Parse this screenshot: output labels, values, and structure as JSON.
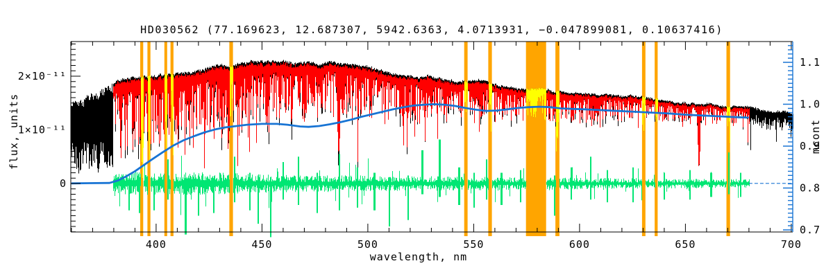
{
  "window": {
    "background": "#ffffff"
  },
  "chart_data": {
    "type": "line",
    "subtype": "stellar-spectrum-fit",
    "title": "HD030562  (77.169623, 12.687307, 5942.6363, 4.0713931, −0.047899081, 0.10637416)",
    "star_id": "HD030562",
    "header_values": [
      "77.169623",
      "12.687307",
      "5942.6363",
      "4.0713931",
      "−0.047899081",
      "0.10637416"
    ],
    "xlabel": "wavelength, nm",
    "ylabel_left": "flux, units",
    "ylabel_right": "mcont",
    "grid": false,
    "legend": "none",
    "axes": {
      "x": {
        "range": [
          359.7,
          700.7
        ],
        "major_ticks": [
          400,
          450,
          500,
          550,
          600,
          650,
          700
        ],
        "major_labels": [
          "400",
          "450",
          "500",
          "550",
          "600",
          "650",
          "700"
        ],
        "minor_step": 10
      },
      "y_left": {
        "units": "1e-11",
        "range_e11": [
          -0.903,
          2.645
        ],
        "major_ticks_e11": [
          0,
          1,
          2
        ],
        "major_labels": [
          "0",
          "1×10⁻¹¹",
          "2×10⁻¹¹"
        ],
        "minor_step_e11": 0.1
      },
      "y_right": {
        "range": [
          0.695,
          1.1496
        ],
        "major_ticks": [
          0.7,
          0.8,
          0.9,
          1.0,
          1.1
        ],
        "major_labels": [
          "0.7",
          "0.8",
          "0.9",
          "1.0",
          "1.1"
        ],
        "minor_step": 0.01
      }
    },
    "colors": {
      "observed": "#000000",
      "model": "#ff0000",
      "masked_points": "#ffff00",
      "masked_bands": "#ffa500",
      "residuals": "#00e673",
      "mcont": "#1874d4",
      "frame": "#000000",
      "right_axis": "#1874d4"
    },
    "series": {
      "observed": {
        "name": "observed spectrum",
        "x_range_nm": [
          360,
          700.6
        ],
        "envelope_top_e11": [
          [
            360,
            1.52
          ],
          [
            365,
            1.6
          ],
          [
            372,
            1.76
          ],
          [
            378,
            1.92
          ],
          [
            382,
            2.0
          ],
          [
            390,
            2.05
          ],
          [
            400,
            2.1
          ],
          [
            415,
            2.17
          ],
          [
            430,
            2.25
          ],
          [
            450,
            2.3
          ],
          [
            470,
            2.28
          ],
          [
            485,
            2.22
          ],
          [
            500,
            2.15
          ],
          [
            520,
            2.05
          ],
          [
            540,
            1.97
          ],
          [
            560,
            1.9
          ],
          [
            580,
            1.83
          ],
          [
            600,
            1.76
          ],
          [
            620,
            1.68
          ],
          [
            640,
            1.6
          ],
          [
            656,
            1.55
          ],
          [
            670,
            1.5
          ],
          [
            680,
            1.46
          ],
          [
            690,
            1.4
          ],
          [
            700,
            1.35
          ]
        ],
        "left_noisy_band_bottom_e11": 0.35
      },
      "model": {
        "name": "fitted model spectrum",
        "x_range_nm": [
          380,
          680.3
        ],
        "line_depth_fraction": [
          [
            380,
            0.62
          ],
          [
            400,
            0.62
          ],
          [
            420,
            0.58
          ],
          [
            440,
            0.55
          ],
          [
            465,
            0.45
          ],
          [
            490,
            0.42
          ],
          [
            515,
            0.4
          ],
          [
            540,
            0.36
          ],
          [
            565,
            0.34
          ],
          [
            590,
            0.32
          ],
          [
            615,
            0.28
          ],
          [
            640,
            0.26
          ],
          [
            665,
            0.24
          ],
          [
            680,
            0.24
          ]
        ]
      },
      "absorption_lines_nm_minflux_e11_halfwidth": [
        [
          383.0,
          0.5,
          0.6
        ],
        [
          385.2,
          0.55,
          0.5
        ],
        [
          388.9,
          0.4,
          0.7
        ],
        [
          393.4,
          0.1,
          0.9
        ],
        [
          396.8,
          0.16,
          0.8
        ],
        [
          400.9,
          0.6,
          0.4
        ],
        [
          404.6,
          0.45,
          0.5
        ],
        [
          407.8,
          0.5,
          0.45
        ],
        [
          410.2,
          0.45,
          0.8
        ],
        [
          413.5,
          0.6,
          0.4
        ],
        [
          417.5,
          0.62,
          0.4
        ],
        [
          422.7,
          0.45,
          0.5
        ],
        [
          427.1,
          0.55,
          0.45
        ],
        [
          430.8,
          0.55,
          0.6
        ],
        [
          434.0,
          0.45,
          0.9
        ],
        [
          438.4,
          0.55,
          0.5
        ],
        [
          440.5,
          0.62,
          0.4
        ],
        [
          444.0,
          0.7,
          0.4
        ],
        [
          447.2,
          0.72,
          0.4
        ],
        [
          453.1,
          0.8,
          0.4
        ],
        [
          458.2,
          0.88,
          0.4
        ],
        [
          464.0,
          0.95,
          0.4
        ],
        [
          470.0,
          1.02,
          0.4
        ],
        [
          476.0,
          1.05,
          0.4
        ],
        [
          486.1,
          0.43,
          1.2
        ],
        [
          492.5,
          1.05,
          0.4
        ],
        [
          495.1,
          0.35,
          0.4
        ],
        [
          501.2,
          1.05,
          0.4
        ],
        [
          508.0,
          1.1,
          0.4
        ],
        [
          516.7,
          0.58,
          0.6
        ],
        [
          518.4,
          0.62,
          0.5
        ],
        [
          522.0,
          1.0,
          0.4
        ],
        [
          527.0,
          0.8,
          0.5
        ],
        [
          532.8,
          0.95,
          0.4
        ],
        [
          537.0,
          1.1,
          0.35
        ],
        [
          544.0,
          1.1,
          0.35
        ],
        [
          552.5,
          1.05,
          0.4
        ],
        [
          558.0,
          1.0,
          0.4
        ],
        [
          563.5,
          1.1,
          0.35
        ],
        [
          570.0,
          1.15,
          0.35
        ],
        [
          578.0,
          1.1,
          0.35
        ],
        [
          589.0,
          0.6,
          0.6
        ],
        [
          589.6,
          0.7,
          0.5
        ],
        [
          597.0,
          1.15,
          0.35
        ],
        [
          605.0,
          1.2,
          0.3
        ],
        [
          612.2,
          1.15,
          0.35
        ],
        [
          616.0,
          1.1,
          0.35
        ],
        [
          625.0,
          1.2,
          0.3
        ],
        [
          630.2,
          1.05,
          0.4
        ],
        [
          638.0,
          1.2,
          0.3
        ],
        [
          644.0,
          1.15,
          0.35
        ],
        [
          650.0,
          1.25,
          0.3
        ],
        [
          656.3,
          0.3,
          1.0
        ],
        [
          663.0,
          1.25,
          0.3
        ],
        [
          667.5,
          1.2,
          0.3
        ],
        [
          670.8,
          0.78,
          0.4
        ],
        [
          675.0,
          1.2,
          0.3
        ],
        [
          679.4,
          0.65,
          0.35
        ]
      ],
      "masked_regions_nm": [
        [
          392.5,
          393.9
        ],
        [
          395.9,
          397.3
        ],
        [
          403.9,
          405.2
        ],
        [
          406.8,
          408.2
        ],
        [
          434.6,
          436.3
        ],
        [
          545.5,
          547.1
        ],
        [
          556.9,
          558.6
        ],
        [
          574.7,
          584.2
        ],
        [
          588.6,
          590.5
        ],
        [
          629.5,
          631.1
        ],
        [
          635.5,
          636.9
        ],
        [
          669.4,
          671.1
        ]
      ],
      "residuals": {
        "name": "observed minus model residuals",
        "x_range_nm": [
          380,
          680.3
        ],
        "center_e11": 0,
        "amplitude_e11": [
          [
            380,
            0.19
          ],
          [
            395,
            0.21
          ],
          [
            410,
            0.21
          ],
          [
            425,
            0.2
          ],
          [
            440,
            0.18
          ],
          [
            455,
            0.16
          ],
          [
            470,
            0.15
          ],
          [
            485,
            0.15
          ],
          [
            500,
            0.14
          ],
          [
            515,
            0.13
          ],
          [
            530,
            0.13
          ],
          [
            545,
            0.12
          ],
          [
            560,
            0.12
          ],
          [
            575,
            0.11
          ],
          [
            590,
            0.11
          ],
          [
            605,
            0.1
          ],
          [
            620,
            0.095
          ],
          [
            635,
            0.09
          ],
          [
            650,
            0.085
          ],
          [
            665,
            0.08
          ],
          [
            680,
            0.08
          ]
        ],
        "spikes_nm_up_down_e11": [
          [
            387,
            0.1,
            0.5
          ],
          [
            392,
            0.12,
            0.55
          ],
          [
            399,
            0.1,
            0.5
          ],
          [
            405.5,
            0.45,
            0.3
          ],
          [
            413.8,
            0.1,
            0.95
          ],
          [
            420,
            0.15,
            0.6
          ],
          [
            427,
            0.1,
            0.55
          ],
          [
            437,
            0.5,
            0.35
          ],
          [
            444,
            0.2,
            0.5
          ],
          [
            448,
            0.15,
            0.75
          ],
          [
            454,
            0.12,
            1.0
          ],
          [
            460,
            0.4,
            0.3
          ],
          [
            467,
            0.5,
            0.4
          ],
          [
            476,
            0.2,
            0.55
          ],
          [
            486.3,
            0.55,
            0.5
          ],
          [
            495,
            0.3,
            0.45
          ],
          [
            503,
            0.2,
            0.5
          ],
          [
            510,
            0.12,
            0.8
          ],
          [
            519,
            0.15,
            0.68
          ],
          [
            525.6,
            0.62,
            0.2
          ],
          [
            533.8,
            0.82,
            0.25
          ],
          [
            543,
            0.3,
            0.4
          ],
          [
            550,
            0.2,
            0.45
          ],
          [
            556,
            0.45,
            0.3
          ],
          [
            563,
            0.2,
            0.4
          ],
          [
            572,
            0.25,
            0.35
          ],
          [
            588,
            0.15,
            0.6
          ],
          [
            596,
            0.3,
            0.3
          ],
          [
            605,
            0.5,
            0.3
          ],
          [
            613,
            0.25,
            0.35
          ],
          [
            625,
            0.3,
            0.35
          ],
          [
            640,
            0.2,
            0.3
          ],
          [
            652,
            0.25,
            0.3
          ],
          [
            662,
            0.2,
            0.25
          ],
          [
            670.5,
            0.58,
            0.2
          ],
          [
            676,
            0.2,
            0.25
          ]
        ]
      },
      "mcont": {
        "name": "continuum correction curve",
        "points_nm_value": [
          [
            360,
            0.811
          ],
          [
            378,
            0.812
          ],
          [
            382,
            0.818
          ],
          [
            386,
            0.828
          ],
          [
            390,
            0.84
          ],
          [
            394,
            0.854
          ],
          [
            398,
            0.868
          ],
          [
            403,
            0.885
          ],
          [
            408,
            0.901
          ],
          [
            413,
            0.914
          ],
          [
            418,
            0.924
          ],
          [
            423,
            0.933
          ],
          [
            428,
            0.94
          ],
          [
            433,
            0.945
          ],
          [
            438,
            0.948
          ],
          [
            443,
            0.951
          ],
          [
            450,
            0.953
          ],
          [
            457,
            0.953
          ],
          [
            462,
            0.951
          ],
          [
            468,
            0.947
          ],
          [
            472,
            0.946
          ],
          [
            477,
            0.948
          ],
          [
            482,
            0.952
          ],
          [
            487,
            0.957
          ],
          [
            492,
            0.963
          ],
          [
            497,
            0.97
          ],
          [
            502,
            0.976
          ],
          [
            507,
            0.982
          ],
          [
            512,
            0.988
          ],
          [
            517,
            0.993
          ],
          [
            522,
            0.997
          ],
          [
            527,
            0.999
          ],
          [
            531,
            1.0
          ],
          [
            536,
            0.999
          ],
          [
            541,
            0.996
          ],
          [
            546,
            0.991
          ],
          [
            551,
            0.987
          ],
          [
            556,
            0.984
          ],
          [
            561,
            0.985
          ],
          [
            566,
            0.988
          ],
          [
            571,
            0.991
          ],
          [
            576,
            0.993
          ],
          [
            581,
            0.994
          ],
          [
            586,
            0.993
          ],
          [
            591,
            0.99
          ],
          [
            596,
            0.989
          ],
          [
            602,
            0.988
          ],
          [
            610,
            0.986
          ],
          [
            618,
            0.984
          ],
          [
            626,
            0.982
          ],
          [
            634,
            0.98
          ],
          [
            642,
            0.978
          ],
          [
            650,
            0.975
          ],
          [
            658,
            0.973
          ],
          [
            666,
            0.971
          ],
          [
            674,
            0.969
          ],
          [
            680,
            0.968
          ]
        ],
        "tail_value_after_680nm": 0.811
      }
    }
  }
}
